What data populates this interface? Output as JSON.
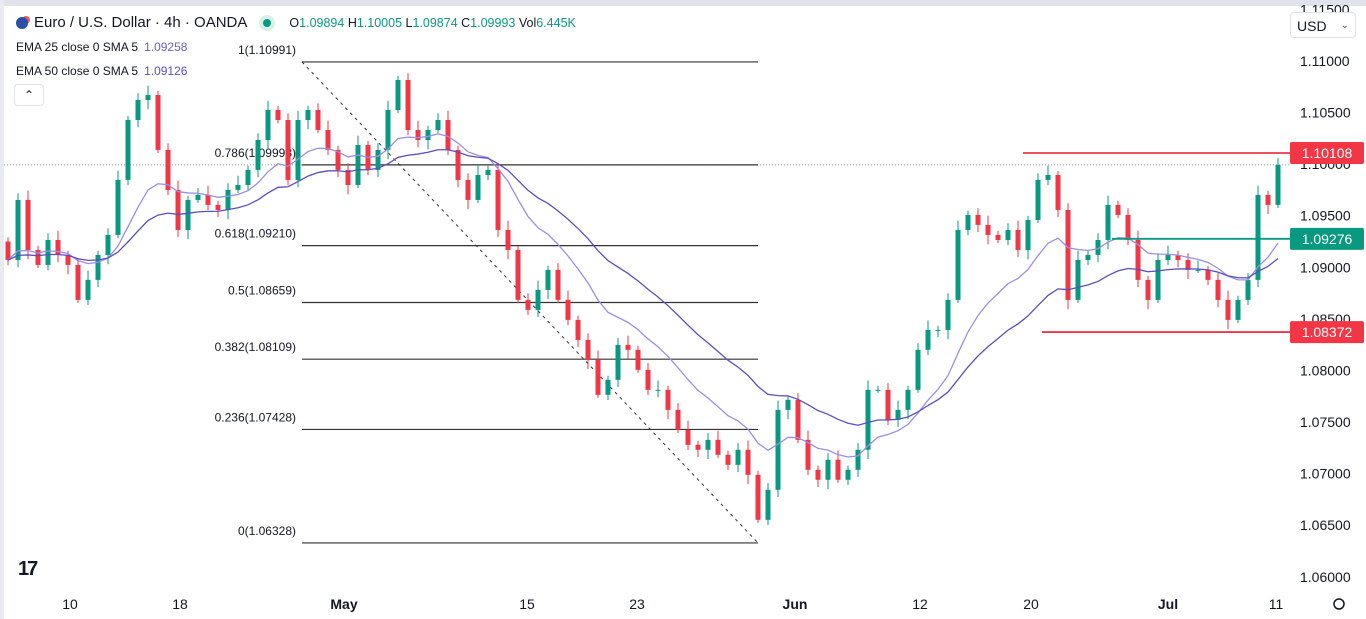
{
  "header": {
    "symbol": "Euro / U.S. Dollar · 4h · OANDA",
    "ohlc": {
      "o_label": "O",
      "o": "1.09894",
      "h_label": "H",
      "h": "1.10005",
      "l_label": "L",
      "l": "1.09874",
      "c_label": "C",
      "c": "1.09993",
      "vol_label": "Vol",
      "vol": "6.445K"
    },
    "indicators": [
      {
        "label": "EMA 25 close 0 SMA 5",
        "value": "1.09258",
        "color": "#9b8fe6"
      },
      {
        "label": "EMA 50 close 0 SMA 5",
        "value": "1.09126",
        "color": "#5b4ec2"
      }
    ],
    "collapse_icon": "chevron-up-icon"
  },
  "currency_select": "USD",
  "colors": {
    "up": "#089981",
    "down": "#f23645",
    "fib": "#333333"
  },
  "chart_data": {
    "type": "candlestick",
    "title": "Euro / U.S. Dollar · 4h · OANDA",
    "ylim": [
      1.0575,
      1.1145
    ],
    "y_ticks": [
      "1.11500",
      "1.11000",
      "1.10500",
      "1.10000",
      "1.09500",
      "1.09000",
      "1.08500",
      "1.08000",
      "1.07500",
      "1.07000",
      "1.06500",
      "1.06000"
    ],
    "x_ticks": [
      "10",
      "18",
      "May",
      "15",
      "23",
      "Jun",
      "12",
      "20",
      "Jul",
      "11"
    ],
    "first_open": 1.0925,
    "closes": [
      1.09071,
      1.09653,
      1.09168,
      1.09023,
      1.09265,
      1.0912,
      1.09023,
      1.08684,
      1.08878,
      1.0912,
      1.09314,
      1.09847,
      1.10428,
      1.10622,
      1.1067,
      1.10138,
      1.0975,
      1.09362,
      1.09653,
      1.09702,
      1.09605,
      1.09556,
      1.0975,
      1.09798,
      1.09944,
      1.10234,
      1.10525,
      1.10428,
      1.09847,
      1.10428,
      1.10525,
      1.10331,
      1.10138,
      1.09944,
      1.09798,
      1.10186,
      1.09944,
      1.10138,
      1.10525,
      1.10816,
      1.10331,
      1.10234,
      1.10331,
      1.10428,
      1.10138,
      1.09847,
      1.09653,
      1.09895,
      1.09944,
      1.09362,
      1.09168,
      1.08684,
      1.08587,
      1.08781,
      1.08975,
      1.08684,
      1.0849,
      1.08296,
      1.08103,
      1.07764,
      1.07909,
      1.08248,
      1.082,
      1.08006,
      1.07812,
      1.07812,
      1.07618,
      1.07424,
      1.07279,
      1.07231,
      1.07327,
      1.07182,
      1.07085,
      1.07231,
      1.06988,
      1.06552,
      1.06843,
      1.07618,
      1.07715,
      1.07327,
      1.07037,
      1.0694,
      1.07134,
      1.0694,
      1.07037,
      1.07231,
      1.07812,
      1.07812,
      1.07521,
      1.07618,
      1.07812,
      1.082,
      1.08393,
      1.08393,
      1.08684,
      1.09362,
      1.09508,
      1.09411,
      1.09314,
      1.09265,
      1.09362,
      1.09168,
      1.09459,
      1.09847,
      1.09895,
      1.09556,
      1.08684,
      1.09071,
      1.0912,
      1.09265,
      1.09605,
      1.09508,
      1.09265,
      1.08878,
      1.08684,
      1.09071,
      1.0912,
      1.09071,
      1.08975,
      1.08975,
      1.08878,
      1.08684,
      1.0849,
      1.08684,
      1.08878,
      1.09702,
      1.09605,
      1.09993
    ],
    "fibonacci": {
      "high": 1.10991,
      "low": 1.06328,
      "levels": [
        {
          "ratio": "1",
          "price": 1.10991,
          "label": "1(1.10991)"
        },
        {
          "ratio": "0.786",
          "price": 1.09993,
          "label": "0.786(1.09993)"
        },
        {
          "ratio": "0.618",
          "price": 1.0921,
          "label": "0.618(1.09210)"
        },
        {
          "ratio": "0.5",
          "price": 1.08659,
          "label": "0.5(1.08659)"
        },
        {
          "ratio": "0.382",
          "price": 1.08109,
          "label": "0.382(1.08109)"
        },
        {
          "ratio": "0.236",
          "price": 1.07428,
          "label": "0.236(1.07428)"
        },
        {
          "ratio": "0",
          "price": 1.06328,
          "label": "0(1.06328)"
        }
      ]
    },
    "horizontal_lines": [
      {
        "price": 1.10108,
        "label": "1.10108",
        "color": "#f23645"
      },
      {
        "price": 1.09276,
        "label": "1.09276",
        "color": "#089981"
      },
      {
        "price": 1.08372,
        "label": "1.08372",
        "color": "#f23645"
      }
    ],
    "current_price": 1.09993
  }
}
